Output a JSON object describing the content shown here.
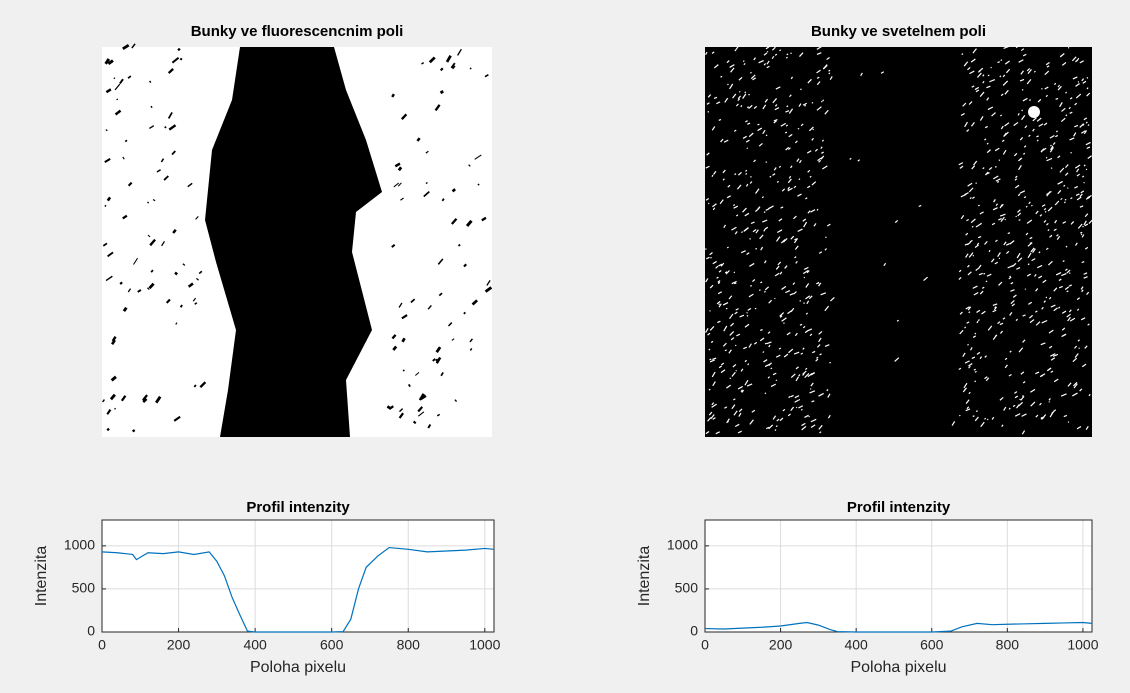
{
  "chart_data": [
    {
      "type": "image",
      "title": "Bunky ve fluorescencnim poli"
    },
    {
      "type": "image",
      "title": "Bunky ve svetelnem poli"
    },
    {
      "type": "line",
      "title": "Profil intenzity",
      "xlabel": "Poloha pixelu",
      "ylabel": "Intenzita",
      "x": [
        0,
        40,
        80,
        90,
        120,
        160,
        200,
        240,
        280,
        300,
        320,
        340,
        360,
        380,
        400,
        500,
        600,
        630,
        650,
        670,
        690,
        720,
        750,
        800,
        850,
        900,
        950,
        1000,
        1024
      ],
      "series": [
        {
          "color": "#0072bd",
          "values": [
            930,
            920,
            900,
            840,
            920,
            910,
            930,
            900,
            930,
            820,
            650,
            400,
            200,
            10,
            0,
            0,
            0,
            5,
            150,
            500,
            750,
            880,
            980,
            960,
            930,
            940,
            950,
            970,
            960
          ]
        }
      ],
      "xlim": [
        0,
        1024
      ],
      "ylim": [
        0,
        1300
      ],
      "xticks": [
        0,
        200,
        400,
        600,
        800,
        1000
      ],
      "yticks": [
        0,
        500,
        1000
      ],
      "grid": true
    },
    {
      "type": "line",
      "title": "Profil intenzity",
      "xlabel": "Poloha pixelu",
      "ylabel": "Intenzita",
      "x": [
        0,
        50,
        100,
        150,
        200,
        250,
        270,
        300,
        330,
        350,
        400,
        500,
        600,
        650,
        680,
        720,
        760,
        800,
        850,
        900,
        950,
        1000,
        1024
      ],
      "series": [
        {
          "color": "#0072bd",
          "values": [
            40,
            35,
            45,
            55,
            70,
            100,
            110,
            80,
            30,
            5,
            0,
            0,
            0,
            10,
            60,
            100,
            85,
            90,
            95,
            100,
            105,
            110,
            100
          ]
        }
      ],
      "xlim": [
        0,
        1024
      ],
      "ylim": [
        0,
        1300
      ],
      "xticks": [
        0,
        200,
        400,
        600,
        800,
        1000
      ],
      "yticks": [
        0,
        500,
        1000
      ],
      "grid": true
    }
  ]
}
